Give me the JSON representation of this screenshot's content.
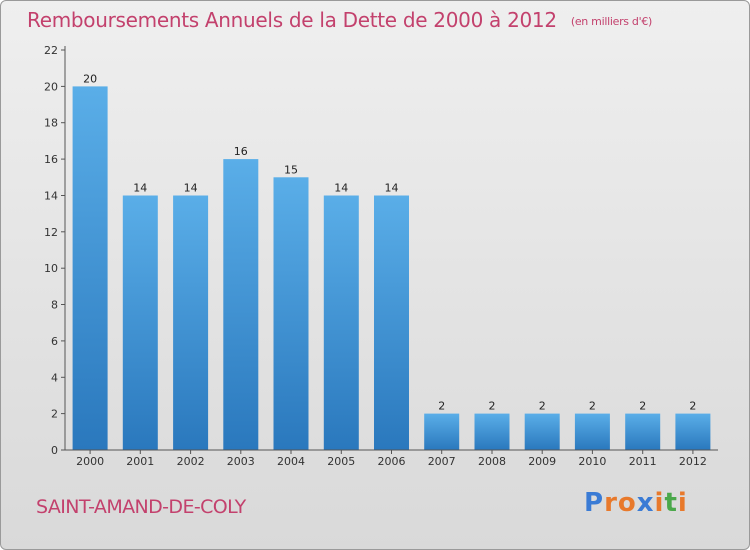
{
  "page": {
    "title": "Remboursements Annuels de la Dette de 2000 à 2012",
    "subtitle": "(en milliers d'€)",
    "commune": "SAINT-AMAND-DE-COLY",
    "logo_text": "Proxiti"
  },
  "colors": {
    "title": "#c3416d",
    "bar_top": "#5aaee8",
    "bar_bottom": "#2a78bd",
    "axis": "#555555",
    "logo": [
      "#3a7bd5",
      "#e8792b",
      "#e8792b",
      "#3a7bd5",
      "#e8792b",
      "#4aa84a",
      "#e8792b"
    ]
  },
  "chart_data": {
    "type": "bar",
    "title": "Remboursements Annuels de la Dette de 2000 à 2012",
    "subtitle": "(en milliers d'€)",
    "xlabel": "",
    "ylabel": "",
    "categories": [
      "2000",
      "2001",
      "2002",
      "2003",
      "2004",
      "2005",
      "2006",
      "2007",
      "2008",
      "2009",
      "2010",
      "2011",
      "2012"
    ],
    "values": [
      20,
      14,
      14,
      16,
      15,
      14,
      14,
      2,
      2,
      2,
      2,
      2,
      2
    ],
    "ylim": [
      0,
      22
    ],
    "yticks": [
      0,
      2,
      4,
      6,
      8,
      10,
      12,
      14,
      16,
      18,
      20,
      22
    ],
    "grid": false,
    "legend": "none"
  }
}
